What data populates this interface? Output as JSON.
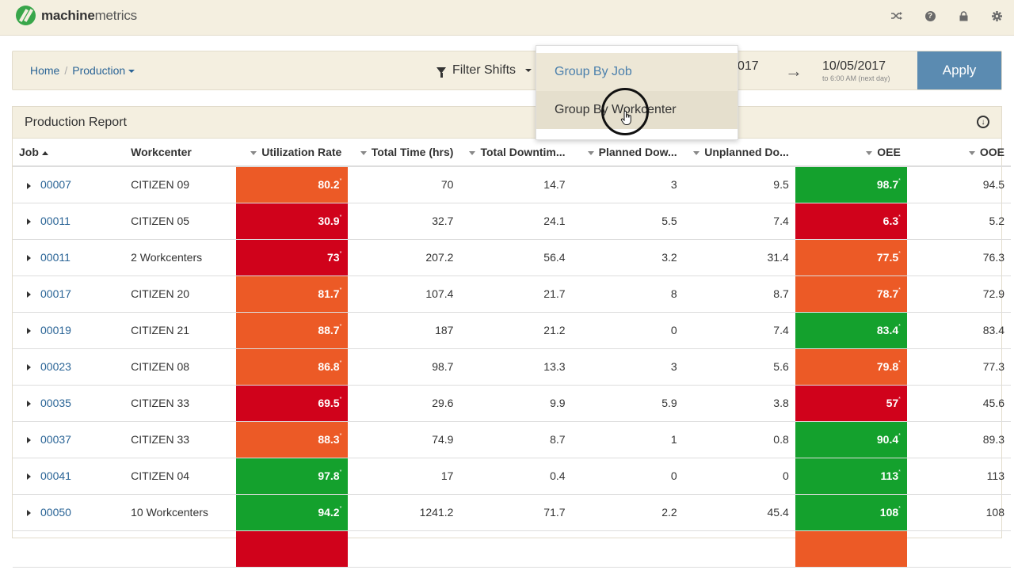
{
  "brand": {
    "name_bold": "machine",
    "name_rest": "metrics"
  },
  "top_icons": [
    "shuffle-icon",
    "help-icon",
    "lock-icon",
    "gear-icon"
  ],
  "breadcrumb": {
    "home": "Home",
    "separator": "/",
    "current": "Production"
  },
  "filter": {
    "label": "Filter Shifts"
  },
  "dates": {
    "start_partial": "017",
    "end": "10/05/2017",
    "end_note": "to 6:00 AM (next day)"
  },
  "apply_label": "Apply",
  "dropdown": {
    "items": [
      "Group By Job",
      "Group By Workcenter"
    ]
  },
  "report": {
    "title": "Production Report",
    "columns": [
      "Job",
      "Workcenter",
      "Utilization Rate",
      "Total Time (hrs)",
      "Total Downtim...",
      "Planned Dow...",
      "Unplanned Do...",
      "OEE",
      "OOE"
    ],
    "rows": [
      {
        "job": "00007",
        "workcenter": "CITIZEN 09",
        "util": "80.2",
        "total": "70",
        "down": "14.7",
        "planned": "3",
        "unplanned": "9.5",
        "oee": "98.7",
        "ooe": "94.5",
        "util_color": "#ec5a26",
        "oee_color": "#14a12d"
      },
      {
        "job": "00011",
        "workcenter": "CITIZEN 05",
        "util": "30.9",
        "total": "32.7",
        "down": "24.1",
        "planned": "5.5",
        "unplanned": "7.4",
        "oee": "6.3",
        "ooe": "5.2",
        "util_color": "#d0021b",
        "oee_color": "#d0021b"
      },
      {
        "job": "00011",
        "workcenter": "2 Workcenters",
        "util": "73",
        "total": "207.2",
        "down": "56.4",
        "planned": "3.2",
        "unplanned": "31.4",
        "oee": "77.5",
        "ooe": "76.3",
        "util_color": "#d0021b",
        "oee_color": "#ec5a26"
      },
      {
        "job": "00017",
        "workcenter": "CITIZEN 20",
        "util": "81.7",
        "total": "107.4",
        "down": "21.7",
        "planned": "8",
        "unplanned": "8.7",
        "oee": "78.7",
        "ooe": "72.9",
        "util_color": "#ec5a26",
        "oee_color": "#ec5a26"
      },
      {
        "job": "00019",
        "workcenter": "CITIZEN 21",
        "util": "88.7",
        "total": "187",
        "down": "21.2",
        "planned": "0",
        "unplanned": "7.4",
        "oee": "83.4",
        "ooe": "83.4",
        "util_color": "#ec5a26",
        "oee_color": "#14a12d"
      },
      {
        "job": "00023",
        "workcenter": "CITIZEN 08",
        "util": "86.8",
        "total": "98.7",
        "down": "13.3",
        "planned": "3",
        "unplanned": "5.6",
        "oee": "79.8",
        "ooe": "77.3",
        "util_color": "#ec5a26",
        "oee_color": "#ec5a26"
      },
      {
        "job": "00035",
        "workcenter": "CITIZEN 33",
        "util": "69.5",
        "total": "29.6",
        "down": "9.9",
        "planned": "5.9",
        "unplanned": "3.8",
        "oee": "57",
        "ooe": "45.6",
        "util_color": "#d0021b",
        "oee_color": "#d0021b"
      },
      {
        "job": "00037",
        "workcenter": "CITIZEN 33",
        "util": "88.3",
        "total": "74.9",
        "down": "8.7",
        "planned": "1",
        "unplanned": "0.8",
        "oee": "90.4",
        "ooe": "89.3",
        "util_color": "#ec5a26",
        "oee_color": "#14a12d"
      },
      {
        "job": "00041",
        "workcenter": "CITIZEN 04",
        "util": "97.8",
        "total": "17",
        "down": "0.4",
        "planned": "0",
        "unplanned": "0",
        "oee": "113",
        "ooe": "113",
        "util_color": "#14a12d",
        "oee_color": "#14a12d"
      },
      {
        "job": "00050",
        "workcenter": "10 Workcenters",
        "util": "94.2",
        "total": "1241.2",
        "down": "71.7",
        "planned": "2.2",
        "unplanned": "45.4",
        "oee": "108",
        "ooe": "108",
        "util_color": "#14a12d",
        "oee_color": "#14a12d"
      }
    ],
    "partial_row": {
      "util_color": "#d0021b",
      "oee_color": "#ec5a26"
    },
    "value_marker": "*"
  }
}
